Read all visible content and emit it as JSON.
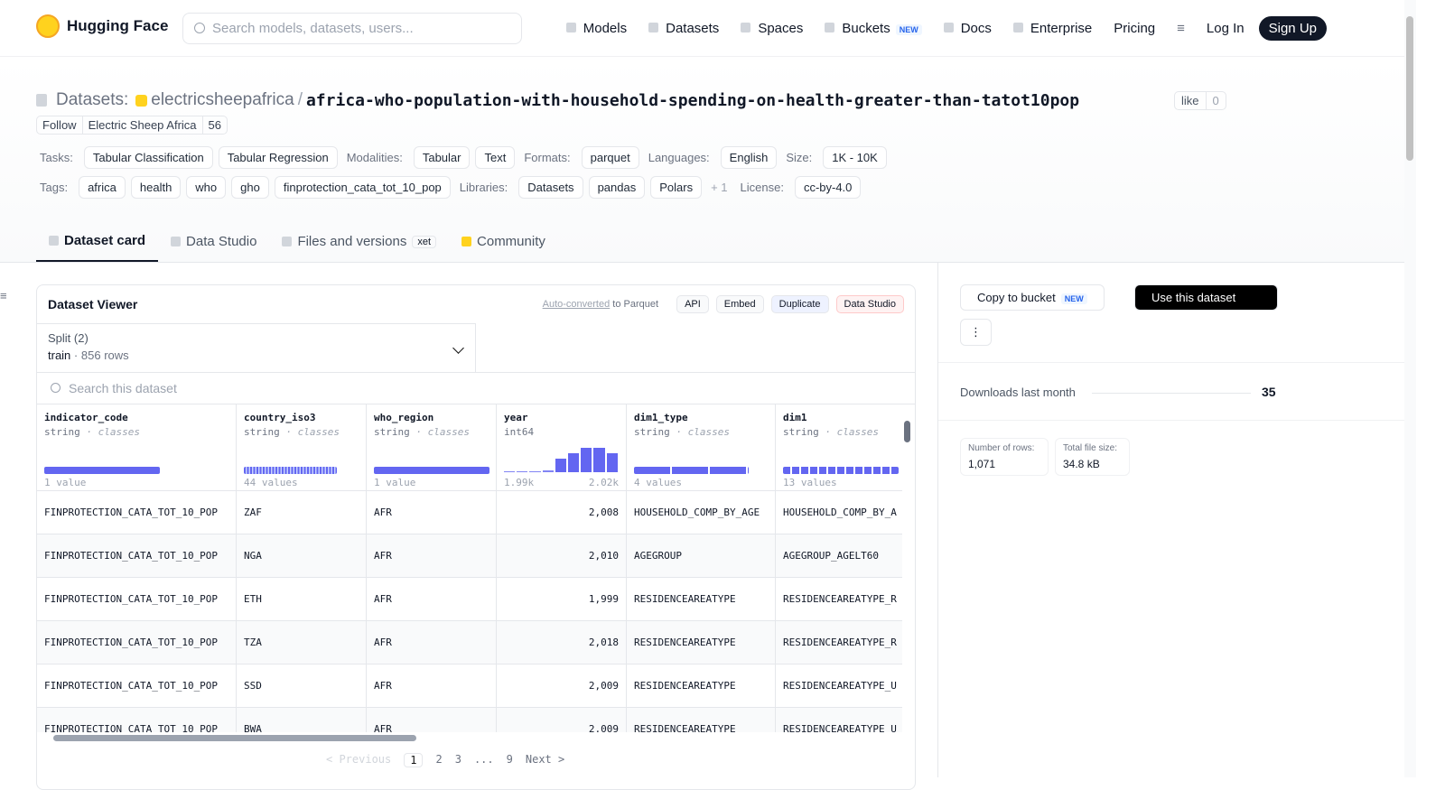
{
  "nav": {
    "logo": "Hugging Face",
    "search_placeholder": "Search models, datasets, users...",
    "links": [
      "Models",
      "Datasets",
      "Spaces",
      "Buckets",
      "Docs",
      "Enterprise",
      "Pricing"
    ],
    "buckets_badge": "NEW",
    "login": "Log In",
    "signup": "Sign Up"
  },
  "header": {
    "prefix": "Datasets:",
    "owner": "electricsheepafrica",
    "separator": "/",
    "name": "africa-who-population-with-household-spending-on-health-greater-than-tatot10pop",
    "like": "like",
    "like_count": "0",
    "follow": "Follow",
    "org": "Electric Sheep Africa",
    "followers": "56"
  },
  "tag_rows": [
    [
      {
        "label": "Tasks:",
        "items": [
          "Tabular Classification",
          "Tabular Regression"
        ]
      },
      {
        "label": "Modalities:",
        "items": [
          "Tabular",
          "Text"
        ]
      },
      {
        "label": "Formats:",
        "items": [
          "parquet"
        ]
      },
      {
        "label": "Languages:",
        "items": [
          "English"
        ]
      },
      {
        "label": "Size:",
        "items": [
          "1K - 10K"
        ]
      }
    ],
    [
      {
        "label": "Tags:",
        "items": [
          "africa",
          "health",
          "who",
          "gho",
          "finprotection_cata_tot_10_pop"
        ]
      },
      {
        "label": "Libraries:",
        "items": [
          "Datasets",
          "pandas",
          "Polars"
        ],
        "more": "+ 1"
      },
      {
        "label": "License:",
        "items": [
          "cc-by-4.0"
        ]
      }
    ]
  ],
  "tabs": {
    "items": [
      "Dataset card",
      "Data Studio",
      "Files and versions",
      "Community"
    ],
    "files_badge": "xet"
  },
  "viewer": {
    "title": "Dataset Viewer",
    "auto_converted": "Auto-converted",
    "to_parquet": "to Parquet",
    "buttons": [
      "API",
      "Embed",
      "Duplicate",
      "Data Studio"
    ],
    "split_label": "Split (2)",
    "split_value": "train",
    "split_separator": "·",
    "split_rows": "856 rows",
    "search_placeholder": "Search this dataset",
    "type_separator": "·",
    "columns": [
      {
        "name": "indicator_code",
        "type": "string",
        "kind": "classes",
        "stat": "1 value"
      },
      {
        "name": "country_iso3",
        "type": "string",
        "kind": "classes",
        "stat": "44 values"
      },
      {
        "name": "who_region",
        "type": "string",
        "kind": "classes",
        "stat": "1 value"
      },
      {
        "name": "year",
        "type": "int64",
        "histogram": [
          1,
          1,
          1,
          2,
          14,
          20,
          26,
          26,
          20
        ],
        "min_label": "1.99k",
        "max_label": "2.02k"
      },
      {
        "name": "dim1_type",
        "type": "string",
        "kind": "classes",
        "stat": "4 values"
      },
      {
        "name": "dim1",
        "type": "string",
        "kind": "classes",
        "stat": "13 values"
      }
    ],
    "rows": [
      [
        "FINPROTECTION_CATA_TOT_10_POP",
        "ZAF",
        "AFR",
        "2,008",
        "HOUSEHOLD_COMP_BY_AGE",
        "HOUSEHOLD_COMP_BY_A"
      ],
      [
        "FINPROTECTION_CATA_TOT_10_POP",
        "NGA",
        "AFR",
        "2,010",
        "AGEGROUP",
        "AGEGROUP_AGELT60"
      ],
      [
        "FINPROTECTION_CATA_TOT_10_POP",
        "ETH",
        "AFR",
        "1,999",
        "RESIDENCEAREATYPE",
        "RESIDENCEAREATYPE_R"
      ],
      [
        "FINPROTECTION_CATA_TOT_10_POP",
        "TZA",
        "AFR",
        "2,018",
        "RESIDENCEAREATYPE",
        "RESIDENCEAREATYPE_R"
      ],
      [
        "FINPROTECTION_CATA_TOT_10_POP",
        "SSD",
        "AFR",
        "2,009",
        "RESIDENCEAREATYPE",
        "RESIDENCEAREATYPE_U"
      ],
      [
        "FINPROTECTION_CATA_TOT_10_POP",
        "BWA",
        "AFR",
        "2,009",
        "RESIDENCEAREATYPE",
        "RESIDENCEAREATYPE_U"
      ]
    ],
    "pagination": {
      "previous": "< Previous",
      "pages": [
        "1",
        "2",
        "3",
        "...",
        "9"
      ],
      "next": "Next >"
    }
  },
  "sidebar": {
    "copy": "Copy to bucket",
    "copy_badge": "NEW",
    "use": "Use this dataset",
    "downloads_label": "Downloads last month",
    "downloads": "35",
    "rows_label": "Number of rows:",
    "rows": "1,071",
    "size_label": "Total file size:",
    "size": "34.8 kB"
  }
}
